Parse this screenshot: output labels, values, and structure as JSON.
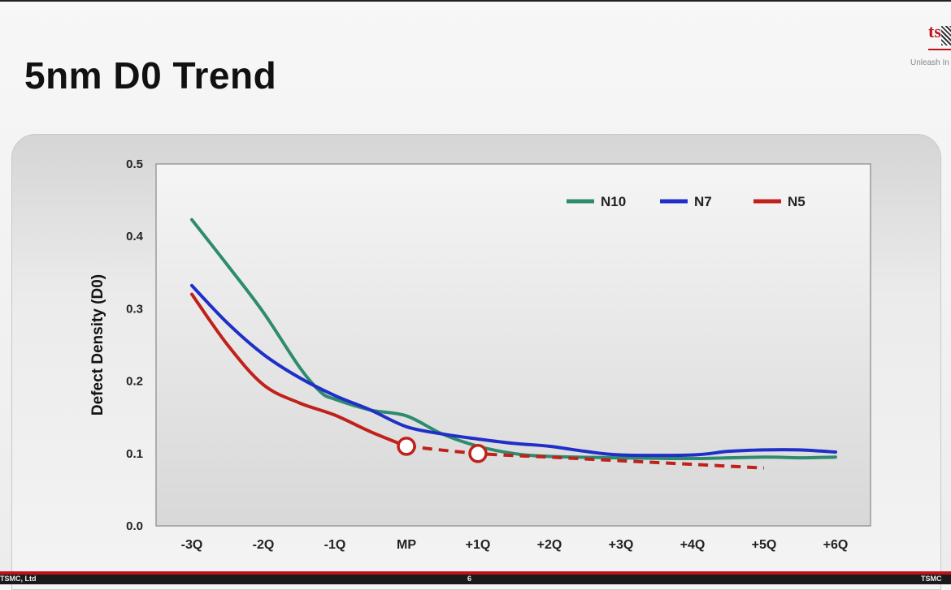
{
  "slide": {
    "title": "5nm D0 Trend",
    "logo_text": "tsm",
    "tagline": "Unleash In",
    "footer_left": "TSMC, Ltd",
    "footer_center": "6",
    "footer_right": "TSMC"
  },
  "chart_data": {
    "type": "line",
    "title": "",
    "xlabel": "",
    "ylabel": "Defect Density (D0)",
    "categories": [
      "-3Q",
      "-2Q",
      "-1Q",
      "MP",
      "+1Q",
      "+2Q",
      "+3Q",
      "+4Q",
      "+5Q",
      "+6Q"
    ],
    "ylim": [
      0.0,
      0.5
    ],
    "yticks": [
      "0.0",
      "0.1",
      "0.2",
      "0.3",
      "0.4",
      "0.5"
    ],
    "grid": false,
    "legend_position": "top-right",
    "series": [
      {
        "name": "N10",
        "color": "#2e8b6e",
        "points": [
          [
            0,
            0.423
          ],
          [
            0.5,
            0.36
          ],
          [
            1,
            0.295
          ],
          [
            1.5,
            0.22
          ],
          [
            1.8,
            0.185
          ],
          [
            2,
            0.175
          ],
          [
            2.5,
            0.16
          ],
          [
            3,
            0.152
          ],
          [
            3.5,
            0.127
          ],
          [
            4,
            0.11
          ],
          [
            4.5,
            0.1
          ],
          [
            5,
            0.096
          ],
          [
            6,
            0.094
          ],
          [
            7,
            0.093
          ],
          [
            8,
            0.095
          ],
          [
            8.5,
            0.094
          ],
          [
            9,
            0.095
          ]
        ]
      },
      {
        "name": "N7",
        "color": "#1f2fc7",
        "points": [
          [
            0,
            0.332
          ],
          [
            0.5,
            0.28
          ],
          [
            1,
            0.237
          ],
          [
            1.5,
            0.205
          ],
          [
            2,
            0.18
          ],
          [
            2.5,
            0.16
          ],
          [
            3,
            0.137
          ],
          [
            3.5,
            0.127
          ],
          [
            4,
            0.12
          ],
          [
            4.5,
            0.114
          ],
          [
            5,
            0.11
          ],
          [
            5.5,
            0.103
          ],
          [
            6,
            0.098
          ],
          [
            7,
            0.098
          ],
          [
            7.5,
            0.103
          ],
          [
            8,
            0.105
          ],
          [
            8.5,
            0.105
          ],
          [
            9,
            0.102
          ]
        ]
      },
      {
        "name": "N5",
        "color": "#c0211a",
        "points": [
          [
            0,
            0.32
          ],
          [
            0.5,
            0.25
          ],
          [
            1,
            0.195
          ],
          [
            1.5,
            0.17
          ],
          [
            2,
            0.153
          ],
          [
            2.5,
            0.13
          ],
          [
            3,
            0.11
          ]
        ],
        "projection": [
          [
            3,
            0.11
          ],
          [
            4,
            0.1
          ],
          [
            5,
            0.095
          ],
          [
            6,
            0.09
          ],
          [
            7,
            0.085
          ],
          [
            8,
            0.08
          ]
        ],
        "markers": [
          [
            3,
            0.11
          ],
          [
            4,
            0.1
          ]
        ]
      }
    ]
  }
}
